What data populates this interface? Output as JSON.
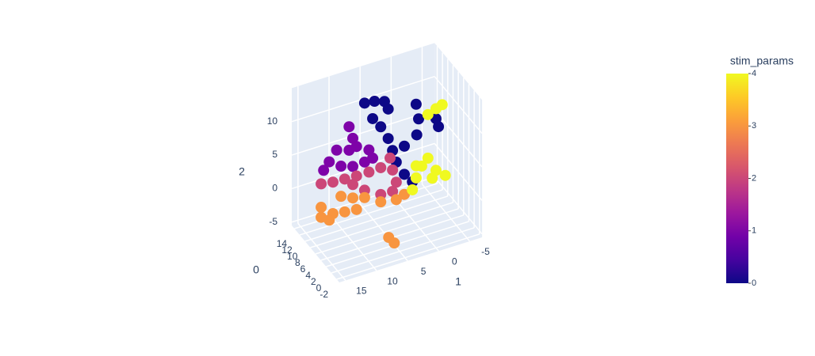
{
  "chart_data": {
    "type": "scatter3d",
    "x_title": "1",
    "y_title": "0",
    "z_title": "2",
    "xlim": [
      -7,
      16
    ],
    "ylim": [
      -3,
      15
    ],
    "zlim": [
      -5.5,
      15
    ],
    "xticks": [
      -5,
      0,
      5,
      10,
      15
    ],
    "yticks": [
      -2,
      0,
      2,
      4,
      6,
      8,
      10,
      12,
      14
    ],
    "zticks": [
      -5,
      0,
      5,
      10
    ],
    "colorbar": {
      "title": "stim_params",
      "lim": [
        0,
        4
      ],
      "ticks": [
        0,
        1,
        2,
        3,
        4
      ],
      "colorscale": [
        "#0d0887",
        "#46039f",
        "#7201a8",
        "#9c179e",
        "#bd3786",
        "#d8576b",
        "#ed7953",
        "#fb9f3a",
        "#fdca26",
        "#f0f921"
      ]
    },
    "series": [
      {
        "stim_params": 0,
        "color": "#0d0887",
        "x": [
          8.1,
          6.5,
          4.9,
          4.3,
          6.8,
          5.5,
          4.3,
          3.6,
          3.0,
          1.7,
          0.4,
          -0.2,
          -0.6,
          -0.3,
          1.7,
          -3.8,
          -3.4
        ],
        "y": [
          6,
          6,
          6,
          6,
          6,
          6,
          6,
          6,
          6,
          6,
          6,
          6,
          6,
          6,
          6,
          6,
          6
        ],
        "z": [
          14.7,
          14.5,
          14.0,
          12.7,
          12.0,
          10.4,
          8.3,
          6.3,
          4.4,
          2.2,
          0.7,
          12.1,
          9.8,
          7.5,
          6.4,
          7.7,
          9.0
        ]
      },
      {
        "stim_params": 1,
        "color": "#7e03a8",
        "x": [
          10.6,
          10.0,
          10.6,
          12.6,
          13.8,
          14.7,
          9.4,
          7.4,
          6.8,
          11.9,
          10.0,
          8.1
        ],
        "y": [
          6,
          6,
          6,
          6,
          6,
          6,
          6,
          6,
          6,
          6,
          6,
          6
        ],
        "z": [
          11.9,
          10.0,
          8.4,
          9.0,
          7.6,
          6.6,
          8.6,
          7.5,
          6.1,
          6.4,
          5.8,
          5.9
        ]
      },
      {
        "stim_params": 2,
        "color": "#cc4778",
        "x": [
          15.1,
          13.2,
          11.3,
          9.4,
          7.4,
          5.5,
          4.0,
          3.6,
          3.0,
          3.6,
          5.5,
          8.1,
          10.0
        ],
        "y": [
          6,
          6,
          6,
          6,
          6,
          6,
          6,
          6,
          6,
          6,
          6,
          6,
          6
        ],
        "z": [
          4.7,
          4.4,
          4.3,
          4.2,
          4.2,
          4.3,
          5.3,
          3.4,
          1.4,
          0.2,
          0.3,
          1.7,
          3.1
        ]
      },
      {
        "stim_params": 3,
        "color": "#f89540",
        "x": [
          15.1,
          15.1,
          13.2,
          11.3,
          9.4,
          11.9,
          10.0,
          8.1,
          5.5,
          3.0,
          1.7,
          13.8,
          7.2,
          6.3
        ],
        "y": [
          6,
          6,
          6,
          6,
          6,
          6,
          6,
          6,
          6,
          6,
          6,
          6,
          -1,
          -1
        ],
        "z": [
          1.2,
          -0.3,
          -0.3,
          -0.6,
          -0.8,
          1.9,
          1.1,
          0.6,
          -0.8,
          -1.2,
          -0.8,
          -1.1,
          -2.3,
          -3.4
        ]
      },
      {
        "stim_params": 4,
        "color": "#f0f921",
        "x": [
          -2.1,
          -3.4,
          -4.4,
          0.4,
          -0.2,
          -1.1,
          -2.1,
          -3.4,
          -4.9,
          -0.2,
          -2.8
        ],
        "y": [
          6,
          6,
          6,
          6,
          6,
          6,
          6,
          6,
          6,
          6,
          6
        ],
        "z": [
          10.0,
          10.5,
          10.8,
          -0.5,
          1.1,
          2.6,
          3.5,
          1.3,
          0.1,
          2.9,
          0.3
        ]
      }
    ]
  }
}
